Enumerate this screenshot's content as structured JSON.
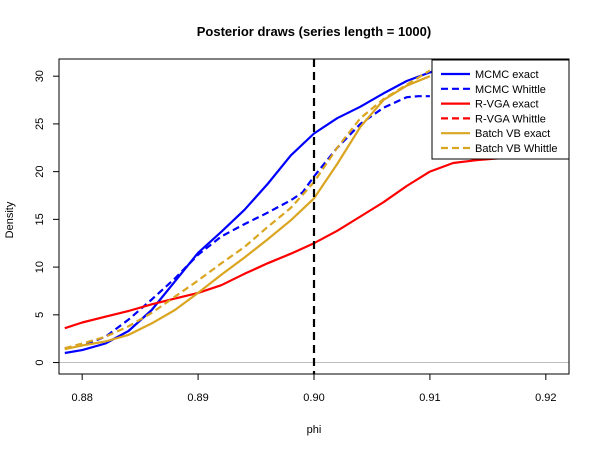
{
  "chart_data": {
    "type": "line",
    "title": "Posterior draws (series length = 1000)",
    "xlabel": "phi",
    "ylabel": "Density",
    "xlim": [
      0.878,
      0.922
    ],
    "ylim": [
      -1.2,
      31.8
    ],
    "x_ticks": [
      0.88,
      0.89,
      0.9,
      0.91,
      0.92
    ],
    "x_tick_labels": [
      "0.88",
      "0.89",
      "0.90",
      "0.91",
      "0.92"
    ],
    "y_ticks": [
      0,
      5,
      10,
      15,
      20,
      25,
      30
    ],
    "y_tick_labels": [
      "0",
      "5",
      "10",
      "15",
      "20",
      "25",
      "30"
    ],
    "reference_line": {
      "x": 0.9,
      "style": "dashed",
      "color": "#000000"
    },
    "zero_line": {
      "y": 0,
      "color": "#bebebe"
    },
    "grid": false,
    "legend_position": "top-right",
    "series": [
      {
        "name": "MCMC exact",
        "color": "#0000ff",
        "style": "solid",
        "x": [
          0.8785,
          0.88,
          0.882,
          0.884,
          0.886,
          0.888,
          0.89,
          0.892,
          0.894,
          0.896,
          0.898,
          0.9,
          0.902,
          0.904,
          0.906,
          0.908,
          0.91,
          0.912,
          0.914,
          0.916,
          0.918
        ],
        "y": [
          1.0,
          1.3,
          2.0,
          3.3,
          5.5,
          8.5,
          11.5,
          13.7,
          16.0,
          18.7,
          21.7,
          24.0,
          25.6,
          26.8,
          28.2,
          29.5,
          30.4,
          31.2,
          31.7,
          32.0,
          32.2
        ]
      },
      {
        "name": "MCMC Whittle",
        "color": "#0000ff",
        "style": "dashed",
        "x": [
          0.8785,
          0.88,
          0.882,
          0.884,
          0.886,
          0.888,
          0.89,
          0.892,
          0.894,
          0.896,
          0.898,
          0.899,
          0.9,
          0.902,
          0.904,
          0.906,
          0.908,
          0.909,
          0.91
        ],
        "y": [
          1.5,
          1.8,
          2.7,
          4.5,
          6.6,
          8.8,
          11.3,
          13.2,
          14.5,
          15.7,
          17.0,
          17.8,
          19.5,
          22.5,
          25.0,
          26.7,
          27.8,
          27.9,
          27.9
        ]
      },
      {
        "name": "R-VGA exact",
        "color": "#ff0000",
        "style": "solid",
        "x": [
          0.8785,
          0.88,
          0.882,
          0.884,
          0.886,
          0.888,
          0.89,
          0.892,
          0.894,
          0.896,
          0.898,
          0.9,
          0.902,
          0.904,
          0.906,
          0.908,
          0.91,
          0.912,
          0.914,
          0.916
        ],
        "y": [
          3.6,
          4.2,
          4.8,
          5.4,
          6.1,
          6.7,
          7.3,
          8.1,
          9.3,
          10.4,
          11.4,
          12.5,
          13.8,
          15.3,
          16.8,
          18.5,
          20.0,
          20.9,
          21.2,
          21.4
        ]
      },
      {
        "name": "R-VGA Whittle",
        "color": "#ff0000",
        "style": "dashed",
        "x": [],
        "y": []
      },
      {
        "name": "Batch VB exact",
        "color": "#daa520",
        "style": "solid",
        "x": [
          0.8785,
          0.88,
          0.882,
          0.884,
          0.886,
          0.888,
          0.89,
          0.892,
          0.894,
          0.896,
          0.898,
          0.9,
          0.902,
          0.904,
          0.906,
          0.908,
          0.91
        ],
        "y": [
          1.4,
          1.8,
          2.2,
          2.9,
          4.1,
          5.5,
          7.3,
          9.2,
          11.0,
          12.9,
          14.9,
          17.2,
          20.8,
          24.7,
          27.5,
          29.0,
          30.0
        ]
      },
      {
        "name": "Batch VB Whittle",
        "color": "#daa520",
        "style": "dashed",
        "x": [
          0.8785,
          0.88,
          0.882,
          0.884,
          0.886,
          0.888,
          0.89,
          0.892,
          0.894,
          0.896,
          0.898,
          0.9,
          0.902,
          0.904,
          0.906,
          0.908,
          0.91
        ],
        "y": [
          1.5,
          2.0,
          2.7,
          3.8,
          5.2,
          6.9,
          8.6,
          10.4,
          12.1,
          14.2,
          16.2,
          18.9,
          22.5,
          25.6,
          27.6,
          29.1,
          30.6
        ]
      }
    ]
  }
}
